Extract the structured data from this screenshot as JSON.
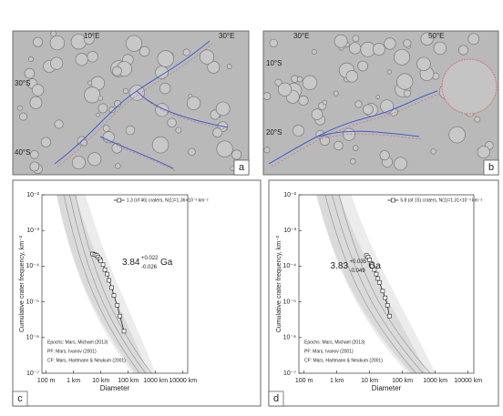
{
  "panels": [
    {
      "letter": "a",
      "labels": [
        "10°E",
        "30°E",
        "30°S",
        "40°S"
      ]
    },
    {
      "letter": "b",
      "labels": [
        "30°E",
        "50°E",
        "10°S",
        "20°S"
      ]
    }
  ],
  "chart_data": [
    {
      "type": "scatter",
      "letter": "c",
      "x_label": "Diameter",
      "y_label": "Cumulative crater frequency, km⁻²",
      "log_x": true,
      "log_y": true,
      "xlim": [
        0.07,
        15000
      ],
      "ylim": [
        1e-07,
        0.01
      ],
      "xticks": [
        {
          "value": 0.1,
          "label": "100 m"
        },
        {
          "value": 1,
          "label": "1 km"
        },
        {
          "value": 10,
          "label": "10 km"
        },
        {
          "value": 100,
          "label": "100 km"
        },
        {
          "value": 1000,
          "label": "1000 km"
        },
        {
          "value": 10000,
          "label": "10000 km"
        }
      ],
      "yticks": [
        {
          "value": 1e-07,
          "label": "10⁻⁷"
        },
        {
          "value": 1e-06,
          "label": "10⁻⁶"
        },
        {
          "value": 1e-05,
          "label": "10⁻⁵"
        },
        {
          "value": 0.0001,
          "label": "10⁻⁴"
        },
        {
          "value": 0.001,
          "label": "10⁻³"
        },
        {
          "value": 0.01,
          "label": "10⁻²"
        }
      ],
      "series": [
        {
          "name": "1.3 (of 46) craters, N(1)=1.36×10⁻³ km⁻²",
          "color": "#222",
          "x": [
            5,
            6,
            7,
            8,
            9,
            10,
            12,
            14,
            17,
            20,
            25,
            30,
            40,
            50,
            70
          ],
          "values": [
            0.00022,
            0.00021,
            0.0002,
            0.00018,
            0.00016,
            0.00014,
            0.00011,
            8e-05,
            6e-05,
            4e-05,
            2.5e-05,
            1.5e-05,
            8e-06,
            4e-06,
            1.5e-06
          ]
        }
      ],
      "annotation": {
        "age": "3.84",
        "plus": "+0.022",
        "minus": "-0.026",
        "unit": "Ga"
      },
      "notes": [
        "Epochs: Mars, Michael (2013)",
        "PF: Mars, Ivanov (2001)",
        "CF: Mars, Hartmann & Neukum (2001)"
      ]
    },
    {
      "type": "scatter",
      "letter": "d",
      "x_label": "Diameter",
      "y_label": "Cumulative crater frequency, km⁻²",
      "log_x": true,
      "log_y": true,
      "xlim": [
        0.07,
        15000
      ],
      "ylim": [
        1e-07,
        0.01
      ],
      "xticks": [
        {
          "value": 0.1,
          "label": "100 m"
        },
        {
          "value": 1,
          "label": "1 km"
        },
        {
          "value": 10,
          "label": "10 km"
        },
        {
          "value": 100,
          "label": "100 km"
        },
        {
          "value": 1000,
          "label": "1000 km"
        },
        {
          "value": 10000,
          "label": "10000 km"
        }
      ],
      "yticks": [
        {
          "value": 1e-07,
          "label": "10⁻⁷"
        },
        {
          "value": 1e-06,
          "label": "10⁻⁶"
        },
        {
          "value": 1e-05,
          "label": "10⁻⁵"
        },
        {
          "value": 0.0001,
          "label": "10⁻⁴"
        },
        {
          "value": 0.001,
          "label": "10⁻³"
        },
        {
          "value": 0.01,
          "label": "10⁻²"
        }
      ],
      "series": [
        {
          "name": "5.8 (of 15) craters, N(1)=1.31×10⁻³ km⁻²",
          "color": "#222",
          "x": [
            8,
            9,
            10,
            11,
            12,
            14,
            16,
            18,
            20,
            25,
            30,
            35,
            40
          ],
          "values": [
            0.0002,
            0.00018,
            0.00015,
            0.00012,
            0.0001,
            8e-05,
            6e-05,
            4.5e-05,
            3.5e-05,
            2e-05,
            1.3e-05,
            8e-06,
            4e-06
          ]
        }
      ],
      "annotation": {
        "age": "3.83",
        "plus": "+0.035",
        "minus": "-0.049",
        "unit": "Ga"
      },
      "notes": [
        "Epochs: Mars, Michael (2013)",
        "PF: Mars, Ivanov (2001)",
        "CF: Mars, Hartmann & Neukum (2001)"
      ]
    }
  ]
}
